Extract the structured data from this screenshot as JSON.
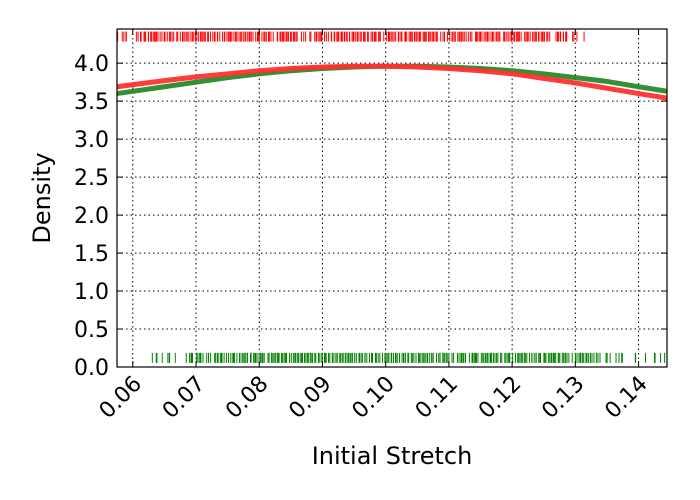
{
  "chart_data": {
    "type": "line",
    "xlabel": "Initial Stretch",
    "ylabel": "Density",
    "xlim": [
      0.0575,
      0.1445
    ],
    "ylim": [
      0.0,
      4.45
    ],
    "grid": true,
    "x_ticks": [
      0.06,
      0.07,
      0.08,
      0.09,
      0.1,
      0.11,
      0.12,
      0.13,
      0.14
    ],
    "x_tick_labels": [
      "0.06",
      "0.07",
      "0.08",
      "0.09",
      "0.10",
      "0.11",
      "0.12",
      "0.13",
      "0.14"
    ],
    "y_ticks": [
      0.0,
      0.5,
      1.0,
      1.5,
      2.0,
      2.5,
      3.0,
      3.5,
      4.0
    ],
    "y_tick_labels": [
      "0.0",
      "0.5",
      "1.0",
      "1.5",
      "2.0",
      "2.5",
      "3.0",
      "3.5",
      "4.0"
    ],
    "series": [
      {
        "color": "#2a8a2a",
        "x": [
          0.0575,
          0.065,
          0.07,
          0.075,
          0.08,
          0.085,
          0.09,
          0.095,
          0.1,
          0.105,
          0.11,
          0.115,
          0.12,
          0.125,
          0.13,
          0.135,
          0.14,
          0.1445
        ],
        "y": [
          3.6,
          3.69,
          3.75,
          3.81,
          3.86,
          3.9,
          3.93,
          3.95,
          3.96,
          3.96,
          3.95,
          3.93,
          3.9,
          3.86,
          3.81,
          3.76,
          3.69,
          3.63
        ]
      },
      {
        "color": "#ff3030",
        "x": [
          0.0575,
          0.065,
          0.07,
          0.075,
          0.08,
          0.085,
          0.09,
          0.095,
          0.1,
          0.105,
          0.11,
          0.115,
          0.12,
          0.125,
          0.13,
          0.135,
          0.14,
          0.1445
        ],
        "y": [
          3.69,
          3.77,
          3.82,
          3.86,
          3.9,
          3.93,
          3.95,
          3.96,
          3.96,
          3.95,
          3.93,
          3.9,
          3.86,
          3.8,
          3.74,
          3.67,
          3.6,
          3.54
        ]
      }
    ],
    "rug": [
      {
        "color": "#ff0000",
        "y_position": 4.35,
        "xmin": 0.0575,
        "xmax": 0.132,
        "dense_xmin": 0.0625,
        "dense_xmax": 0.126
      },
      {
        "color": "#008000",
        "y_position": 0.12,
        "xmin": 0.0625,
        "xmax": 0.1445,
        "dense_xmin": 0.07,
        "dense_xmax": 0.134
      }
    ]
  }
}
